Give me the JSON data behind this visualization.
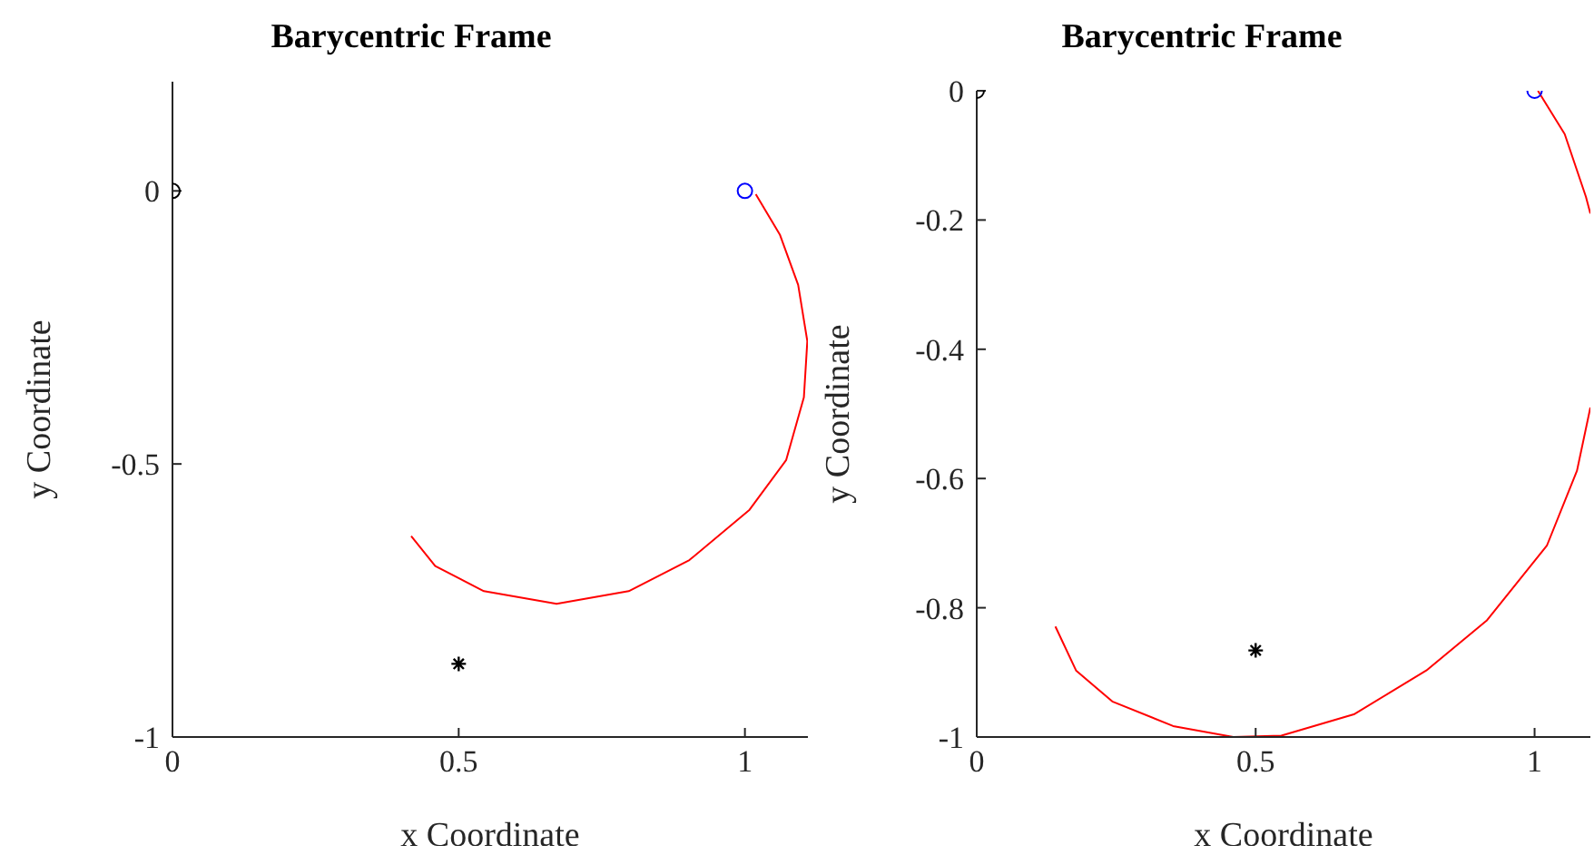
{
  "chart_data": [
    {
      "type": "line",
      "title": "Barycentric Frame",
      "xlabel": "x Coordinate",
      "ylabel": "y Coordinate",
      "xlim": [
        0,
        1.11
      ],
      "ylim": [
        -1,
        0.2
      ],
      "xticks": [
        0,
        0.5,
        1
      ],
      "yticks": [
        -1,
        -0.5,
        0
      ],
      "grid": false,
      "legend": false,
      "series": [
        {
          "color": "#ff0000",
          "marker": "none",
          "line_style": "solid",
          "x": [
            1.019,
            1.061,
            1.093,
            1.109,
            1.103,
            1.072,
            1.008,
            0.903,
            0.797,
            0.671,
            0.544,
            0.459,
            0.417
          ],
          "values": [
            -0.006,
            -0.08,
            -0.172,
            -0.275,
            -0.378,
            -0.493,
            -0.584,
            -0.676,
            -0.733,
            -0.756,
            -0.733,
            -0.687,
            -0.632
          ]
        },
        {
          "type": "scatter",
          "color": "#000000",
          "marker": "circle",
          "x": [
            0
          ],
          "values": [
            0
          ]
        },
        {
          "type": "scatter",
          "color": "#0000ff",
          "marker": "circle",
          "x": [
            1
          ],
          "values": [
            0
          ]
        },
        {
          "type": "scatter",
          "color": "#000000",
          "marker": "cross",
          "x": [
            0.5
          ],
          "values": [
            -0.866
          ]
        }
      ]
    },
    {
      "type": "line",
      "title": "Barycentric Frame",
      "xlabel": "x Coordinate",
      "ylabel": "y Coordinate",
      "xlim": [
        0,
        1.1
      ],
      "ylim": [
        -1,
        0
      ],
      "xticks": [
        0,
        0.5,
        1
      ],
      "yticks": [
        -1,
        -0.8,
        -0.6,
        -0.4,
        -0.2,
        0
      ],
      "grid": false,
      "legend": false,
      "series": [
        {
          "color": "#ff0000",
          "marker": "none",
          "line_style": "solid",
          "x": [
            1.006,
            1.054,
            1.092,
            1.1,
            null,
            1.1,
            1.076,
            1.022,
            0.914,
            0.806,
            0.676,
            0.546,
            0.46,
            0.352,
            0.243,
            0.178,
            0.141
          ],
          "values": [
            0,
            -0.067,
            -0.164,
            -0.19,
            null,
            -0.49,
            -0.588,
            -0.704,
            -0.82,
            -0.897,
            -0.965,
            -0.998,
            -1,
            -0.983,
            -0.945,
            -0.897,
            -0.829
          ]
        },
        {
          "type": "scatter",
          "color": "#000000",
          "marker": "circle",
          "x": [
            0
          ],
          "values": [
            0
          ]
        },
        {
          "type": "scatter",
          "color": "#0000ff",
          "marker": "circle",
          "x": [
            1
          ],
          "values": [
            0
          ]
        },
        {
          "type": "scatter",
          "color": "#000000",
          "marker": "cross",
          "x": [
            0.5
          ],
          "values": [
            -0.866
          ]
        }
      ]
    }
  ]
}
